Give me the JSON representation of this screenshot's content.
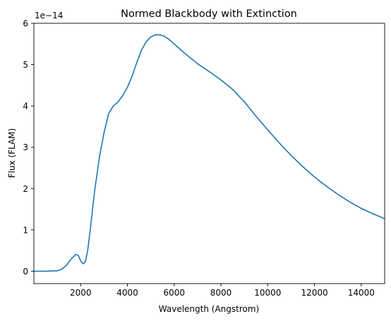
{
  "chart_data": {
    "type": "line",
    "title": "Normed Blackbody with Extinction",
    "xlabel": "Wavelength (Angstrom)",
    "ylabel": "Flux (FLAM)",
    "offset_text": "1e−14",
    "xlim": [
      0,
      15000
    ],
    "ylim": [
      -0.3,
      6.0
    ],
    "x_ticks": [
      2000,
      4000,
      6000,
      8000,
      10000,
      12000,
      14000
    ],
    "x_tick_labels": [
      "2000",
      "4000",
      "6000",
      "8000",
      "10000",
      "12000",
      "14000"
    ],
    "y_ticks": [
      0,
      1,
      2,
      3,
      4,
      5,
      6
    ],
    "y_tick_labels": [
      "0",
      "1",
      "2",
      "3",
      "4",
      "5",
      "6"
    ],
    "grid": false,
    "series": [
      {
        "color": "#1f77b4",
        "x": [
          0,
          500,
          1000,
          1200,
          1400,
          1600,
          1800,
          1900,
          2000,
          2100,
          2200,
          2300,
          2400,
          2600,
          2800,
          3000,
          3200,
          3400,
          3600,
          3800,
          4000,
          4200,
          4400,
          4600,
          4800,
          5000,
          5200,
          5400,
          5600,
          5800,
          6000,
          6500,
          7000,
          7500,
          8000,
          8500,
          9000,
          9500,
          10000,
          10500,
          11000,
          11500,
          12000,
          12500,
          13000,
          13500,
          14000,
          14500,
          15000
        ],
        "y": [
          0.0,
          0.0,
          0.01,
          0.05,
          0.15,
          0.3,
          0.41,
          0.38,
          0.25,
          0.18,
          0.22,
          0.5,
          0.95,
          1.95,
          2.75,
          3.35,
          3.82,
          4.0,
          4.1,
          4.25,
          4.45,
          4.72,
          5.05,
          5.35,
          5.55,
          5.67,
          5.72,
          5.72,
          5.68,
          5.6,
          5.5,
          5.25,
          5.02,
          4.83,
          4.63,
          4.4,
          4.1,
          3.75,
          3.42,
          3.1,
          2.8,
          2.53,
          2.28,
          2.06,
          1.86,
          1.68,
          1.52,
          1.39,
          1.27
        ]
      }
    ]
  }
}
